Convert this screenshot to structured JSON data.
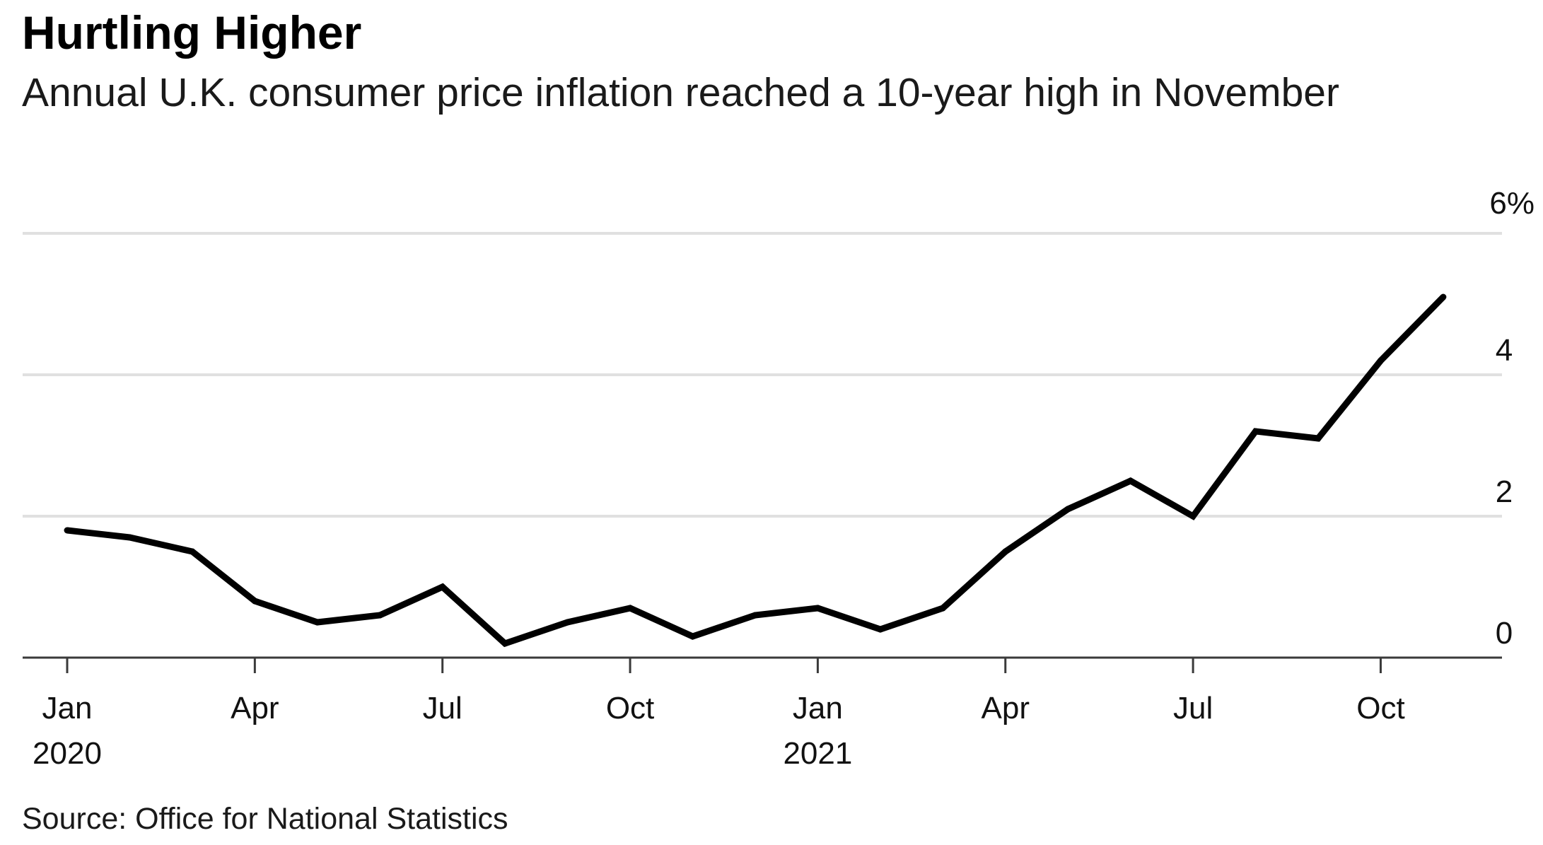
{
  "title": "Hurtling Higher",
  "subtitle": "Annual U.K. consumer price inflation reached a 10-year high in November",
  "source": "Source: Office for National Statistics",
  "colors": {
    "line": "#000000",
    "grid": "#e0e0e0",
    "axis": "#3a3a3a",
    "background": "#ffffff"
  },
  "chart_data": {
    "type": "line",
    "title": "Hurtling Higher",
    "subtitle": "Annual U.K. consumer price inflation reached a 10-year high in November",
    "xlabel": "",
    "ylabel": "",
    "x": [
      "2020-01",
      "2020-02",
      "2020-03",
      "2020-04",
      "2020-05",
      "2020-06",
      "2020-07",
      "2020-08",
      "2020-09",
      "2020-10",
      "2020-11",
      "2020-12",
      "2021-01",
      "2021-02",
      "2021-03",
      "2021-04",
      "2021-05",
      "2021-06",
      "2021-07",
      "2021-08",
      "2021-09",
      "2021-10",
      "2021-11"
    ],
    "series": [
      {
        "values": [
          1.8,
          1.7,
          1.5,
          0.8,
          0.5,
          0.6,
          1.0,
          0.2,
          0.5,
          0.7,
          0.3,
          0.6,
          0.7,
          0.4,
          0.7,
          1.5,
          2.1,
          2.5,
          2.0,
          3.2,
          3.1,
          4.2,
          5.1
        ]
      }
    ],
    "ylim": [
      0,
      6
    ],
    "y_ticks": [
      {
        "value": 6,
        "label": "6%"
      },
      {
        "value": 4,
        "label": "4"
      },
      {
        "value": 2,
        "label": "2"
      },
      {
        "value": 0,
        "label": "0"
      }
    ],
    "x_ticks": [
      {
        "x": "2020-01",
        "label": "Jan",
        "year": "2020"
      },
      {
        "x": "2020-04",
        "label": "Apr"
      },
      {
        "x": "2020-07",
        "label": "Jul"
      },
      {
        "x": "2020-10",
        "label": "Oct"
      },
      {
        "x": "2021-01",
        "label": "Jan",
        "year": "2021"
      },
      {
        "x": "2021-04",
        "label": "Apr"
      },
      {
        "x": "2021-07",
        "label": "Jul"
      },
      {
        "x": "2021-10",
        "label": "Oct"
      }
    ],
    "grid": true,
    "y_axis_side": "right"
  }
}
